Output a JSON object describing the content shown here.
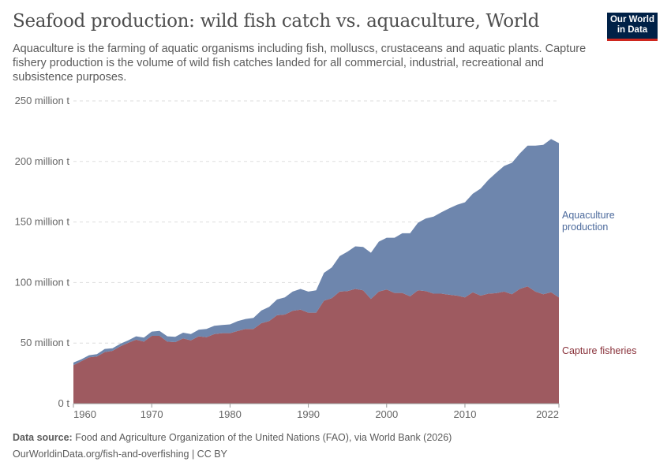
{
  "header": {
    "title": "Seafood production: wild fish catch vs. aquaculture, World",
    "subtitle": "Aquaculture is the farming of aquatic organisms including fish, molluscs, crustaceans and aquatic plants. Capture fishery production is the volume of wild fish catches landed for all commercial, industrial, recreational and subsistence purposes.",
    "logo_text": "Our World in Data"
  },
  "footer": {
    "source_label": "Data source:",
    "source_text": "Food and Agriculture Organization of the United Nations (FAO), via World Bank (2026)",
    "url_text": "OurWorldinData.org/fish-and-overfishing | CC BY"
  },
  "chart_data": {
    "type": "area",
    "stacked": true,
    "title": "Seafood production: wild fish catch vs. aquaculture, World",
    "xlabel": "",
    "ylabel": "",
    "xlim": [
      1960,
      2022
    ],
    "ylim": [
      0,
      250
    ],
    "unit": "million t",
    "grid": "horizontal dashed",
    "legend": "right, inline labels",
    "y_ticks": [
      "0 t",
      "50 million t",
      "100 million t",
      "150 million t",
      "200 million t",
      "250 million t"
    ],
    "y_tick_values": [
      0,
      50,
      100,
      150,
      200,
      250
    ],
    "x_ticks": [
      1960,
      1970,
      1980,
      1990,
      2000,
      2010,
      2022
    ],
    "x": [
      1960,
      1961,
      1962,
      1963,
      1964,
      1965,
      1966,
      1967,
      1968,
      1969,
      1970,
      1971,
      1972,
      1973,
      1974,
      1975,
      1976,
      1977,
      1978,
      1979,
      1980,
      1981,
      1982,
      1983,
      1984,
      1985,
      1986,
      1987,
      1988,
      1989,
      1990,
      1991,
      1992,
      1993,
      1994,
      1995,
      1996,
      1997,
      1998,
      1999,
      2000,
      2001,
      2002,
      2003,
      2004,
      2005,
      2006,
      2007,
      2008,
      2009,
      2010,
      2011,
      2012,
      2013,
      2014,
      2015,
      2016,
      2017,
      2018,
      2019,
      2020,
      2021,
      2022
    ],
    "series": [
      {
        "name": "Capture fisheries",
        "color": "#9e5a60",
        "label_color": "#883039",
        "values": [
          31.7,
          35.0,
          38.2,
          38.9,
          42.6,
          43.6,
          47.3,
          50.2,
          52.8,
          51.2,
          56.0,
          56.0,
          51.2,
          50.8,
          53.9,
          52.3,
          55.6,
          54.9,
          57.5,
          58.2,
          58.2,
          60.0,
          61.7,
          61.7,
          66.4,
          68.2,
          73.0,
          73.6,
          76.7,
          77.7,
          75.1,
          75.1,
          85.0,
          87.1,
          92.5,
          92.9,
          94.7,
          93.6,
          86.4,
          92.5,
          94.3,
          91.4,
          91.4,
          88.6,
          93.6,
          92.9,
          90.8,
          90.8,
          89.9,
          89.2,
          87.7,
          92.0,
          89.2,
          90.8,
          91.2,
          92.5,
          90.3,
          94.7,
          96.9,
          92.5,
          90.3,
          92.0,
          87.7
        ]
      },
      {
        "name": "Aquaculture production",
        "color": "#6e86ad",
        "label_color": "#4c6a9c",
        "values": [
          2.2,
          1.5,
          1.8,
          1.9,
          2.6,
          2.2,
          2.2,
          2.1,
          2.8,
          3.3,
          3.5,
          4.0,
          4.4,
          4.4,
          4.7,
          5.2,
          5.4,
          6.8,
          6.8,
          6.8,
          7.2,
          8.2,
          8.2,
          9.1,
          10.5,
          11.7,
          13.0,
          14.1,
          15.8,
          17.0,
          17.4,
          18.5,
          23.0,
          25.4,
          29.3,
          32.6,
          35.2,
          35.8,
          38.2,
          41.3,
          42.7,
          45.6,
          49.3,
          52.1,
          55.8,
          60.0,
          63.6,
          67.3,
          71.4,
          75.0,
          78.6,
          81.3,
          88.4,
          94.0,
          99.5,
          103.8,
          108.6,
          111.8,
          116.1,
          120.5,
          123.4,
          126.5,
          127.5
        ]
      }
    ],
    "series_labels": {
      "aquaculture_line1": "Aquaculture",
      "aquaculture_line2": "production",
      "capture": "Capture fisheries"
    }
  }
}
